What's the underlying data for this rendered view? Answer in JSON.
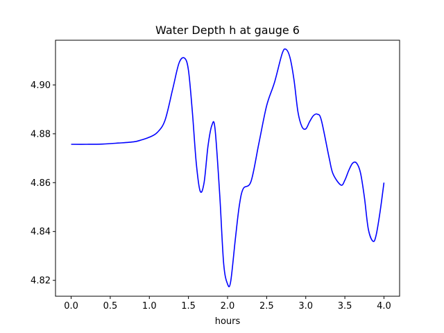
{
  "chart_data": {
    "type": "line",
    "title": "Water Depth h at gauge 6",
    "xlabel": "hours",
    "ylabel": "",
    "xlim": [
      -0.2,
      4.2
    ],
    "ylim": [
      4.8135,
      4.9183
    ],
    "grid": false,
    "x_ticks": [
      {
        "value": 0.0,
        "label": "0.0"
      },
      {
        "value": 0.5,
        "label": "0.5"
      },
      {
        "value": 1.0,
        "label": "1.0"
      },
      {
        "value": 1.5,
        "label": "1.5"
      },
      {
        "value": 2.0,
        "label": "2.0"
      },
      {
        "value": 2.5,
        "label": "2.5"
      },
      {
        "value": 3.0,
        "label": "3.0"
      },
      {
        "value": 3.5,
        "label": "3.5"
      },
      {
        "value": 4.0,
        "label": "4.0"
      }
    ],
    "y_ticks": [
      {
        "value": 4.82,
        "label": "4.82"
      },
      {
        "value": 4.84,
        "label": "4.84"
      },
      {
        "value": 4.86,
        "label": "4.86"
      },
      {
        "value": 4.88,
        "label": "4.88"
      },
      {
        "value": 4.9,
        "label": "4.90"
      }
    ],
    "series": [
      {
        "color": "#0000ff",
        "x": [
          0.0,
          0.2,
          0.4,
          0.6,
          0.8,
          0.9,
          1.0,
          1.1,
          1.2,
          1.3,
          1.38,
          1.45,
          1.5,
          1.55,
          1.6,
          1.65,
          1.7,
          1.75,
          1.8,
          1.84,
          1.9,
          1.95,
          2.0,
          2.04,
          2.1,
          2.15,
          2.2,
          2.3,
          2.4,
          2.5,
          2.6,
          2.7,
          2.75,
          2.8,
          2.85,
          2.9,
          2.95,
          3.0,
          3.05,
          3.1,
          3.15,
          3.2,
          3.3,
          3.35,
          3.45,
          3.5,
          3.55,
          3.6,
          3.65,
          3.7,
          3.75,
          3.8,
          3.86,
          3.9,
          3.95,
          4.0
        ],
        "y": [
          4.8757,
          4.8757,
          4.8758,
          4.8762,
          4.8767,
          4.8775,
          4.8786,
          4.8805,
          4.8855,
          4.8985,
          4.909,
          4.911,
          4.906,
          4.889,
          4.868,
          4.8565,
          4.86,
          4.875,
          4.8835,
          4.882,
          4.855,
          4.827,
          4.8185,
          4.8195,
          4.837,
          4.8505,
          4.8575,
          4.8605,
          4.876,
          4.8915,
          4.901,
          4.913,
          4.9145,
          4.911,
          4.902,
          4.889,
          4.883,
          4.882,
          4.885,
          4.8875,
          4.888,
          4.8855,
          4.87,
          4.8635,
          4.859,
          4.861,
          4.865,
          4.868,
          4.868,
          4.864,
          4.854,
          4.841,
          4.836,
          4.8385,
          4.848,
          4.86
        ]
      }
    ]
  }
}
